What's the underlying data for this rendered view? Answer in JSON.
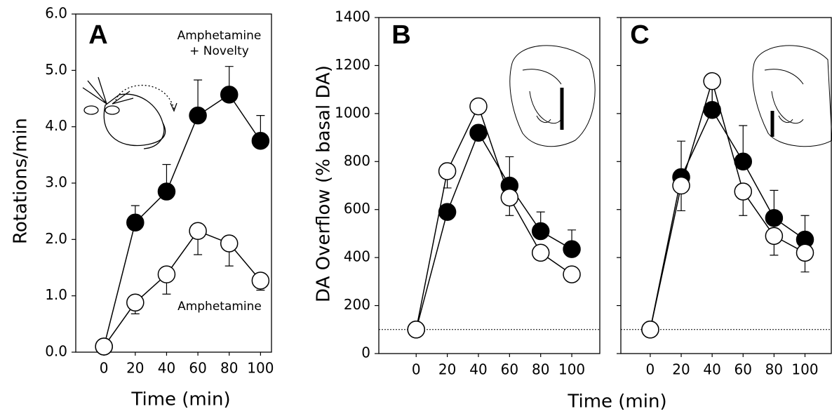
{
  "chart_data": [
    {
      "type": "line",
      "panel_label": "A",
      "ylabel": "Rotations/min",
      "xlabel": "Time (min)",
      "x": [
        0,
        20,
        40,
        60,
        80,
        100
      ],
      "xlim": [
        -18,
        107
      ],
      "xticks": [
        0,
        20,
        40,
        60,
        80,
        100
      ],
      "ylim": [
        0,
        6
      ],
      "yticks": [
        {
          "value": 0,
          "label": "0.0"
        },
        {
          "value": 1,
          "label": "1.0"
        },
        {
          "value": 2,
          "label": "2.0"
        },
        {
          "value": 3,
          "label": "3.0"
        },
        {
          "value": 4,
          "label": "4.0"
        },
        {
          "value": 5,
          "label": "5.0"
        },
        {
          "value": 6,
          "label": "6.0"
        }
      ],
      "series": [
        {
          "name": "Amphetamine + Novelty",
          "color": "#000000",
          "error_side": "up",
          "values": [
            0.1,
            2.3,
            2.85,
            4.2,
            4.57,
            3.75
          ],
          "errors": [
            null,
            0.3,
            0.48,
            0.63,
            0.5,
            0.45
          ]
        },
        {
          "name": "Amphetamine",
          "color": "#ffffff",
          "error_side": "down",
          "values": [
            0.1,
            0.88,
            1.38,
            2.15,
            1.93,
            1.27
          ],
          "errors": [
            null,
            0.2,
            0.35,
            0.42,
            0.4,
            0.17
          ]
        }
      ]
    },
    {
      "type": "line",
      "panel_label": "B",
      "ylabel": "DA Overflow (% basal DA)",
      "xlabel": "Time (min)",
      "x": [
        0,
        20,
        40,
        60,
        80,
        100
      ],
      "xlim": [
        -24,
        118
      ],
      "xticks": [
        0,
        20,
        40,
        60,
        80,
        100
      ],
      "ylim": [
        0,
        1400
      ],
      "yticks": [
        0,
        200,
        400,
        600,
        800,
        1000,
        1200,
        1400
      ],
      "hline": 100,
      "series": [
        {
          "color": "#000000",
          "error_side": "up",
          "values": [
            100,
            590,
            920,
            700,
            510,
            435
          ],
          "errors": [
            null,
            null,
            null,
            120,
            80,
            80
          ]
        },
        {
          "color": "#ffffff",
          "error_side": "down",
          "values": [
            100,
            760,
            1030,
            650,
            420,
            330
          ],
          "errors": [
            null,
            70,
            null,
            75,
            null,
            null
          ]
        }
      ]
    },
    {
      "type": "line",
      "panel_label": "C",
      "x": [
        0,
        20,
        40,
        60,
        80,
        100
      ],
      "xlim": [
        -19,
        117
      ],
      "xticks": [
        0,
        20,
        40,
        60,
        80,
        100
      ],
      "ylim": [
        0,
        1400
      ],
      "yticks": [
        0,
        200,
        400,
        600,
        800,
        1000,
        1200,
        1400
      ],
      "ytick_labels": false,
      "hline": 100,
      "series": [
        {
          "color": "#000000",
          "error_side": "up",
          "values": [
            100,
            735,
            1015,
            800,
            565,
            475
          ],
          "errors": [
            null,
            150,
            105,
            150,
            115,
            100
          ]
        },
        {
          "color": "#ffffff",
          "error_side": "down",
          "values": [
            100,
            700,
            1135,
            675,
            490,
            420
          ],
          "errors": [
            null,
            105,
            105,
            100,
            80,
            80
          ]
        }
      ]
    }
  ]
}
